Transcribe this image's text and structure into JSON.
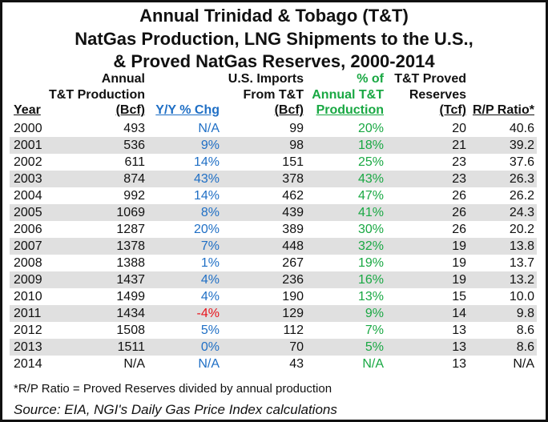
{
  "chart_data": {
    "type": "table",
    "title": [
      "Annual Trinidad & Tobago (T&T)",
      "NatGas Production, LNG Shipments to the U.S.,",
      "& Proved NatGas Reserves, 2000-2014"
    ],
    "columns": [
      {
        "lines": [
          "Year"
        ]
      },
      {
        "lines": [
          "Annual",
          "T&T Production",
          "(Bcf)"
        ]
      },
      {
        "lines": [
          "Y/Y % Chg"
        ]
      },
      {
        "lines": [
          "U.S. Imports",
          "From T&T",
          "(Bcf)"
        ]
      },
      {
        "lines": [
          "% of",
          "Annual T&T",
          "Production"
        ]
      },
      {
        "lines": [
          "T&T Proved",
          "Reserves",
          "(Tcf)"
        ]
      },
      {
        "lines": [
          "R/P Ratio*"
        ]
      }
    ],
    "rows": [
      [
        "2000",
        "493",
        "N/A",
        "99",
        "20%",
        "20",
        "40.6"
      ],
      [
        "2001",
        "536",
        "9%",
        "98",
        "18%",
        "21",
        "39.2"
      ],
      [
        "2002",
        "611",
        "14%",
        "151",
        "25%",
        "23",
        "37.6"
      ],
      [
        "2003",
        "874",
        "43%",
        "378",
        "43%",
        "23",
        "26.3"
      ],
      [
        "2004",
        "992",
        "14%",
        "462",
        "47%",
        "26",
        "26.2"
      ],
      [
        "2005",
        "1069",
        "8%",
        "439",
        "41%",
        "26",
        "24.3"
      ],
      [
        "2006",
        "1287",
        "20%",
        "389",
        "30%",
        "26",
        "20.2"
      ],
      [
        "2007",
        "1378",
        "7%",
        "448",
        "32%",
        "19",
        "13.8"
      ],
      [
        "2008",
        "1388",
        "1%",
        "267",
        "19%",
        "19",
        "13.7"
      ],
      [
        "2009",
        "1437",
        "4%",
        "236",
        "16%",
        "19",
        "13.2"
      ],
      [
        "2010",
        "1499",
        "4%",
        "190",
        "13%",
        "15",
        "10.0"
      ],
      [
        "2011",
        "1434",
        "-4%",
        "129",
        "9%",
        "14",
        "9.8"
      ],
      [
        "2012",
        "1508",
        "5%",
        "112",
        "7%",
        "13",
        "8.6"
      ],
      [
        "2013",
        "1511",
        "0%",
        "70",
        "5%",
        "13",
        "8.6"
      ],
      [
        "2014",
        "N/A",
        "N/A",
        "43",
        "N/A",
        "13",
        "N/A"
      ]
    ],
    "footnote": "*R/P Ratio = Proved Reserves divided by annual production",
    "source": "Source: EIA, NGI's Daily Gas Price Index calculations",
    "colors": {
      "yoy": "#1f6fc5",
      "pct": "#19a843",
      "negative": "#e8141c",
      "alt_row": "#e0e0e0"
    }
  }
}
